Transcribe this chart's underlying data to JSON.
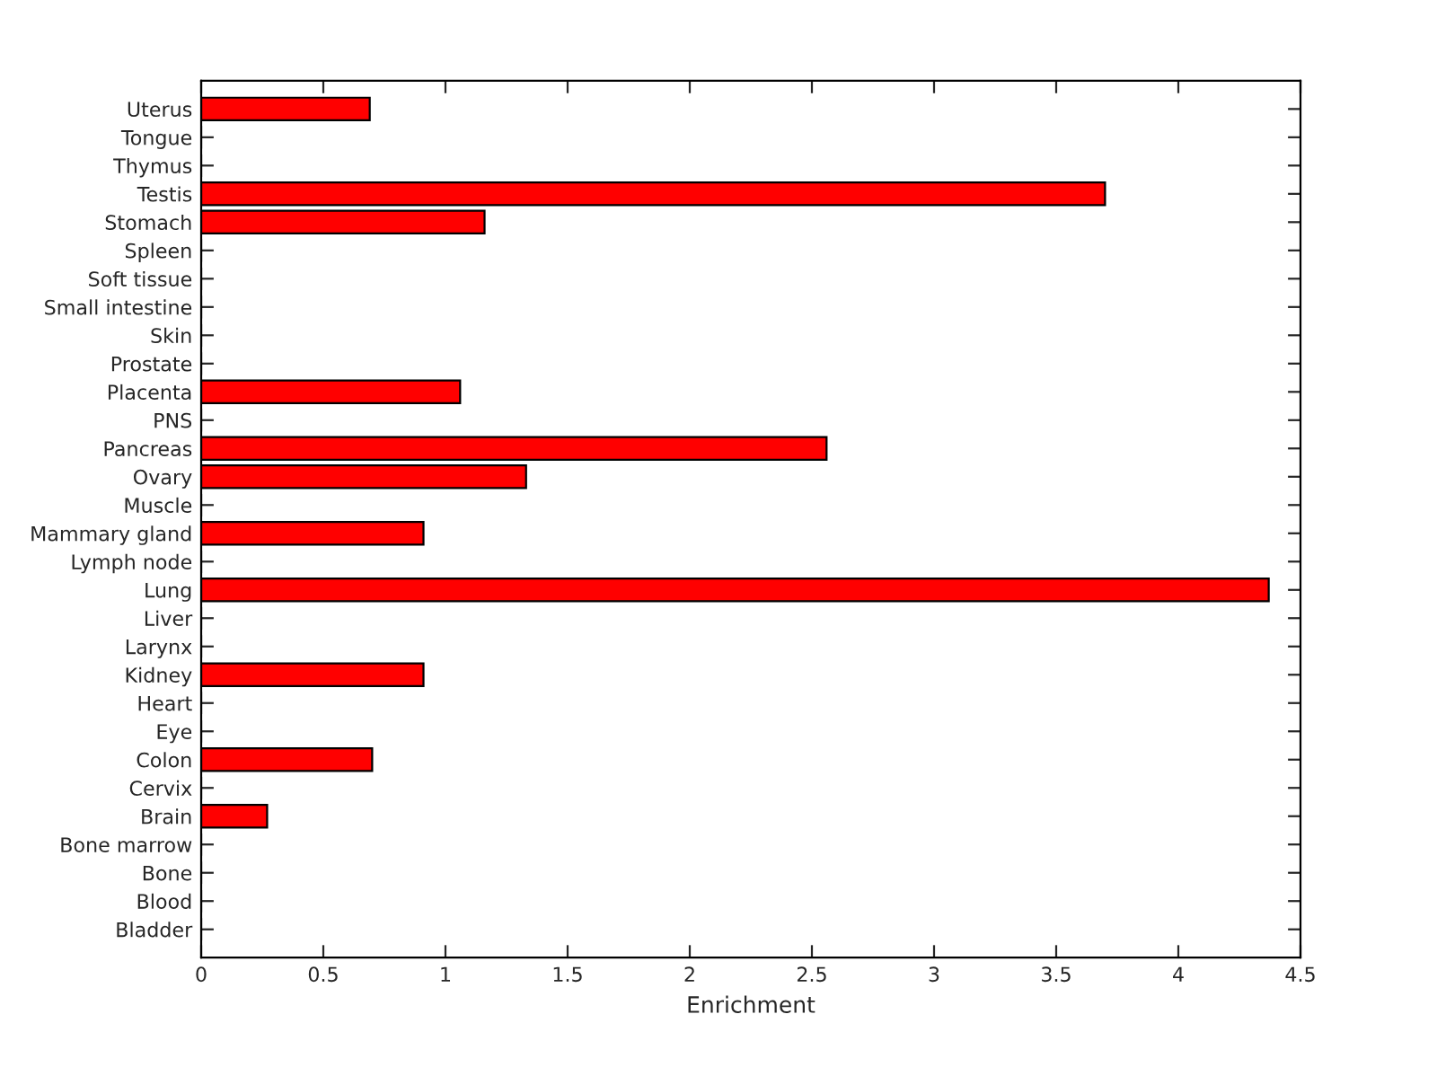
{
  "chart_data": {
    "type": "bar",
    "orientation": "horizontal",
    "xlabel": "Enrichment",
    "categories": [
      "Uterus",
      "Tongue",
      "Thymus",
      "Testis",
      "Stomach",
      "Spleen",
      "Soft tissue",
      "Small intestine",
      "Skin",
      "Prostate",
      "Placenta",
      "PNS",
      "Pancreas",
      "Ovary",
      "Muscle",
      "Mammary gland",
      "Lymph node",
      "Lung",
      "Liver",
      "Larynx",
      "Kidney",
      "Heart",
      "Eye",
      "Colon",
      "Cervix",
      "Brain",
      "Bone marrow",
      "Bone",
      "Blood",
      "Bladder"
    ],
    "values": [
      0.69,
      0,
      0,
      3.7,
      1.16,
      0,
      0,
      0,
      0,
      0,
      1.06,
      0,
      2.56,
      1.33,
      0,
      0.91,
      0,
      4.37,
      0,
      0,
      0.91,
      0,
      0,
      0.7,
      0,
      0.27,
      0,
      0,
      0,
      0
    ],
    "color": "#ff0000",
    "xlim": [
      0,
      4.5
    ],
    "xticks": [
      0,
      0.5,
      1,
      1.5,
      2,
      2.5,
      3,
      3.5,
      4,
      4.5
    ],
    "grid": false,
    "legend": false
  }
}
